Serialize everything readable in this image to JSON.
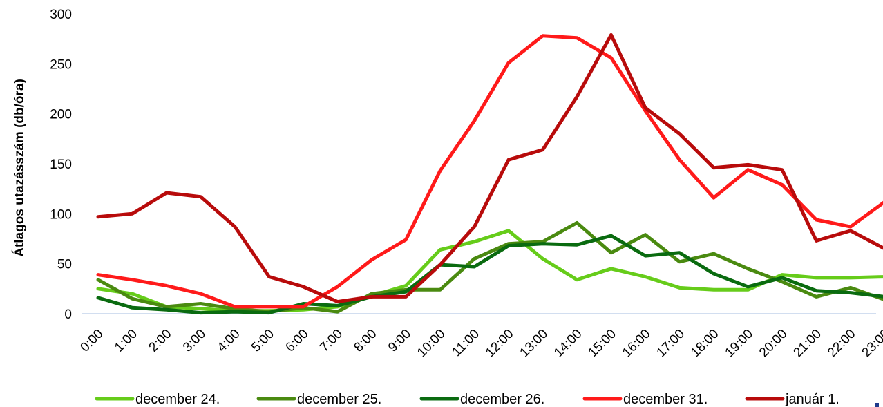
{
  "chart_data": {
    "type": "line",
    "title": "",
    "xlabel": "",
    "ylabel": "Átlagos utazásszám (db/óra)",
    "ylim": [
      0,
      300
    ],
    "yticks": [
      0,
      50,
      100,
      150,
      200,
      250,
      300
    ],
    "grid": false,
    "legend_position": "bottom",
    "categories": [
      "0:00",
      "1:00",
      "2:00",
      "3:00",
      "4:00",
      "5:00",
      "6:00",
      "7:00",
      "8:00",
      "9:00",
      "10:00",
      "11:00",
      "12:00",
      "13:00",
      "14:00",
      "15:00",
      "16:00",
      "17:00",
      "18:00",
      "19:00",
      "20:00",
      "21:00",
      "22:00",
      "23:00"
    ],
    "series": [
      {
        "name": "december 24.",
        "color": "#66cc1a",
        "values": [
          25,
          20,
          7,
          5,
          3,
          3,
          4,
          7,
          18,
          28,
          64,
          72,
          83,
          55,
          34,
          45,
          37,
          26,
          24,
          24,
          39,
          36,
          36,
          37
        ]
      },
      {
        "name": "december 25.",
        "color": "#4a8a10",
        "values": [
          34,
          15,
          7,
          10,
          5,
          2,
          6,
          2,
          20,
          24,
          24,
          55,
          70,
          72,
          91,
          61,
          79,
          52,
          60,
          45,
          32,
          17,
          26,
          14
        ]
      },
      {
        "name": "december 26.",
        "color": "#0a6b10",
        "values": [
          16,
          6,
          4,
          1,
          2,
          1,
          10,
          8,
          17,
          22,
          49,
          47,
          68,
          70,
          69,
          78,
          58,
          61,
          40,
          27,
          36,
          23,
          21,
          17
        ]
      },
      {
        "name": "december 31.",
        "color": "#ff1a1a",
        "values": [
          39,
          34,
          28,
          20,
          7,
          7,
          7,
          27,
          54,
          74,
          143,
          193,
          251,
          278,
          276,
          256,
          203,
          154,
          116,
          144,
          129,
          94,
          87,
          112
        ]
      },
      {
        "name": "január 1.",
        "color": "#b80b0b",
        "values": [
          97,
          100,
          121,
          117,
          87,
          37,
          27,
          12,
          17,
          17,
          49,
          87,
          154,
          164,
          217,
          279,
          206,
          180,
          146,
          149,
          144,
          73,
          83,
          65
        ]
      }
    ]
  }
}
